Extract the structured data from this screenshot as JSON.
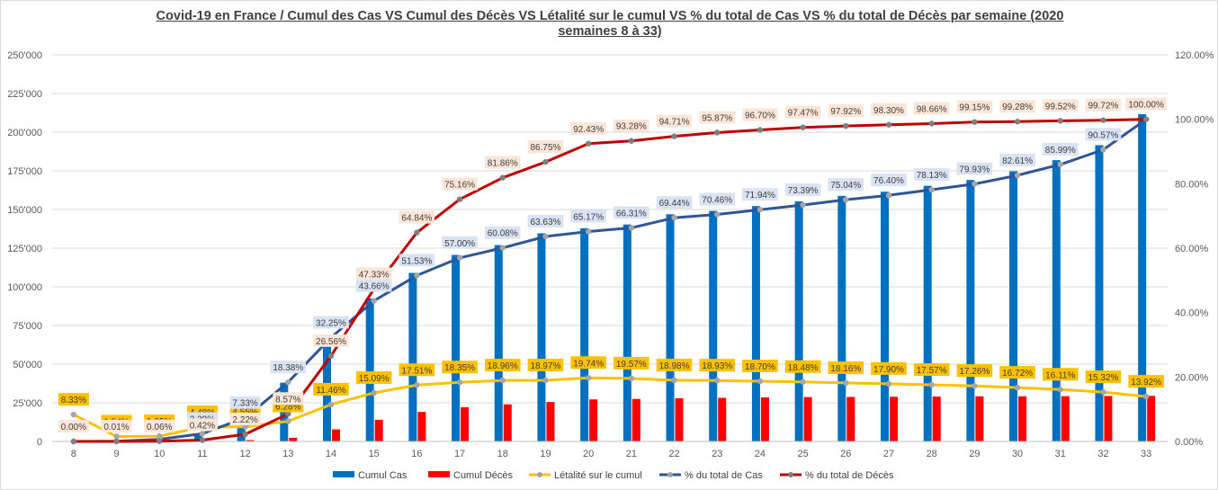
{
  "chart_data": {
    "type": "bar",
    "title": "Covid-19 en France / Cumul des Cas VS Cumul des Décès VS Létalité sur le cumul VS % du total de Cas VS % du total de Décès par semaine (2020 semaines 8 à 33)",
    "x": [
      "8",
      "9",
      "10",
      "11",
      "12",
      "13",
      "14",
      "15",
      "16",
      "17",
      "18",
      "19",
      "20",
      "21",
      "22",
      "23",
      "24",
      "25",
      "26",
      "27",
      "28",
      "29",
      "30",
      "31",
      "32",
      "33"
    ],
    "y_left": {
      "range": [
        0,
        250000
      ],
      "ticks": [
        0,
        25000,
        50000,
        75000,
        100000,
        125000,
        150000,
        175000,
        200000,
        225000,
        250000
      ],
      "tick_labels": [
        "0",
        "25'000",
        "50'000",
        "75'000",
        "100'000",
        "125'000",
        "150'000",
        "175'000",
        "200'000",
        "225'000",
        "250'000"
      ]
    },
    "y_right": {
      "range": [
        0,
        120
      ],
      "ticks": [
        0,
        20,
        40,
        60,
        80,
        100,
        120
      ],
      "tick_labels": [
        "0.00%",
        "20.00%",
        "40.00%",
        "60.00%",
        "80.00%",
        "100.00%",
        "120.00%"
      ]
    },
    "grid": true,
    "legend_position": "bottom",
    "series": [
      {
        "name": "Cumul Cas",
        "kind": "bar",
        "axis": "left",
        "color": "#0070c0",
        "values": [
          12,
          100,
          1400,
          5000,
          9200,
          38000,
          68000,
          92500,
          109000,
          120600,
          127000,
          134600,
          137900,
          140300,
          146900,
          149100,
          152200,
          155300,
          158800,
          161500,
          165300,
          169100,
          174700,
          181900,
          191600,
          211600
        ]
      },
      {
        "name": "Cumul Décès",
        "kind": "bar",
        "axis": "left",
        "color": "#ff0000",
        "values": [
          0,
          0,
          50,
          300,
          860,
          2400,
          7800,
          14000,
          19100,
          22100,
          24000,
          25500,
          27200,
          27500,
          27900,
          28200,
          28500,
          28700,
          28800,
          28900,
          29000,
          29200,
          29200,
          29300,
          29400,
          29500
        ]
      },
      {
        "name": "Létalité sur le cumul",
        "kind": "line",
        "axis": "right",
        "color": "#ffc000",
        "values": [
          8.33,
          1.54,
          1.65,
          4.48,
          4.55,
          6.28,
          11.46,
          15.09,
          17.51,
          18.35,
          18.96,
          18.97,
          19.74,
          19.57,
          18.98,
          18.93,
          18.7,
          18.48,
          18.16,
          17.9,
          17.57,
          17.26,
          16.72,
          16.11,
          15.32,
          13.92
        ],
        "labels": [
          "8.33%",
          "1.54%",
          "1.65%",
          "4.48%",
          "4.55%",
          "6.28%",
          "11.46%",
          "15.09%",
          "17.51%",
          "18.35%",
          "18.96%",
          "18.97%",
          "19.74%",
          "19.57%",
          "18.98%",
          "18.93%",
          "18.70%",
          "18.48%",
          "18.16%",
          "17.90%",
          "17.57%",
          "17.26%",
          "16.72%",
          "16.11%",
          "15.32%",
          "13.92%"
        ]
      },
      {
        "name": "% du total de Cas",
        "kind": "line",
        "axis": "right",
        "color": "#2f5597",
        "values": [
          0.0,
          0.05,
          0.66,
          2.39,
          7.33,
          18.38,
          32.25,
          43.66,
          51.53,
          57.0,
          60.08,
          63.63,
          65.17,
          66.31,
          69.44,
          70.46,
          71.94,
          73.39,
          75.04,
          76.4,
          78.13,
          79.93,
          82.61,
          85.99,
          90.57,
          100.0
        ],
        "labels": [
          "",
          "",
          "",
          "2.39%",
          "7.33%",
          "18.38%",
          "32.25%",
          "43.66%",
          "51.53%",
          "57.00%",
          "60.08%",
          "63.63%",
          "65.17%",
          "66.31%",
          "69.44%",
          "70.46%",
          "71.94%",
          "73.39%",
          "75.04%",
          "76.40%",
          "78.13%",
          "79.93%",
          "82.61%",
          "85.99%",
          "90.57%",
          ""
        ]
      },
      {
        "name": "% du total de Décès",
        "kind": "line",
        "axis": "right",
        "color": "#c00000",
        "values": [
          0.0,
          0.01,
          0.06,
          0.42,
          2.22,
          8.57,
          26.56,
          47.33,
          64.84,
          75.16,
          81.86,
          86.75,
          92.43,
          93.28,
          94.71,
          95.87,
          96.7,
          97.47,
          97.92,
          98.3,
          98.66,
          99.15,
          99.28,
          99.52,
          99.72,
          100.0
        ],
        "labels": [
          "0.00%",
          "0.01%",
          "0.06%",
          "0.42%",
          "2.22%",
          "8.57%",
          "26.56%",
          "47.33%",
          "64.84%",
          "75.16%",
          "81.86%",
          "86.75%",
          "92.43%",
          "93.28%",
          "94.71%",
          "95.87%",
          "96.70%",
          "97.47%",
          "97.92%",
          "98.30%",
          "98.66%",
          "99.15%",
          "99.28%",
          "99.52%",
          "99.72%",
          "100.00%"
        ]
      }
    ]
  }
}
